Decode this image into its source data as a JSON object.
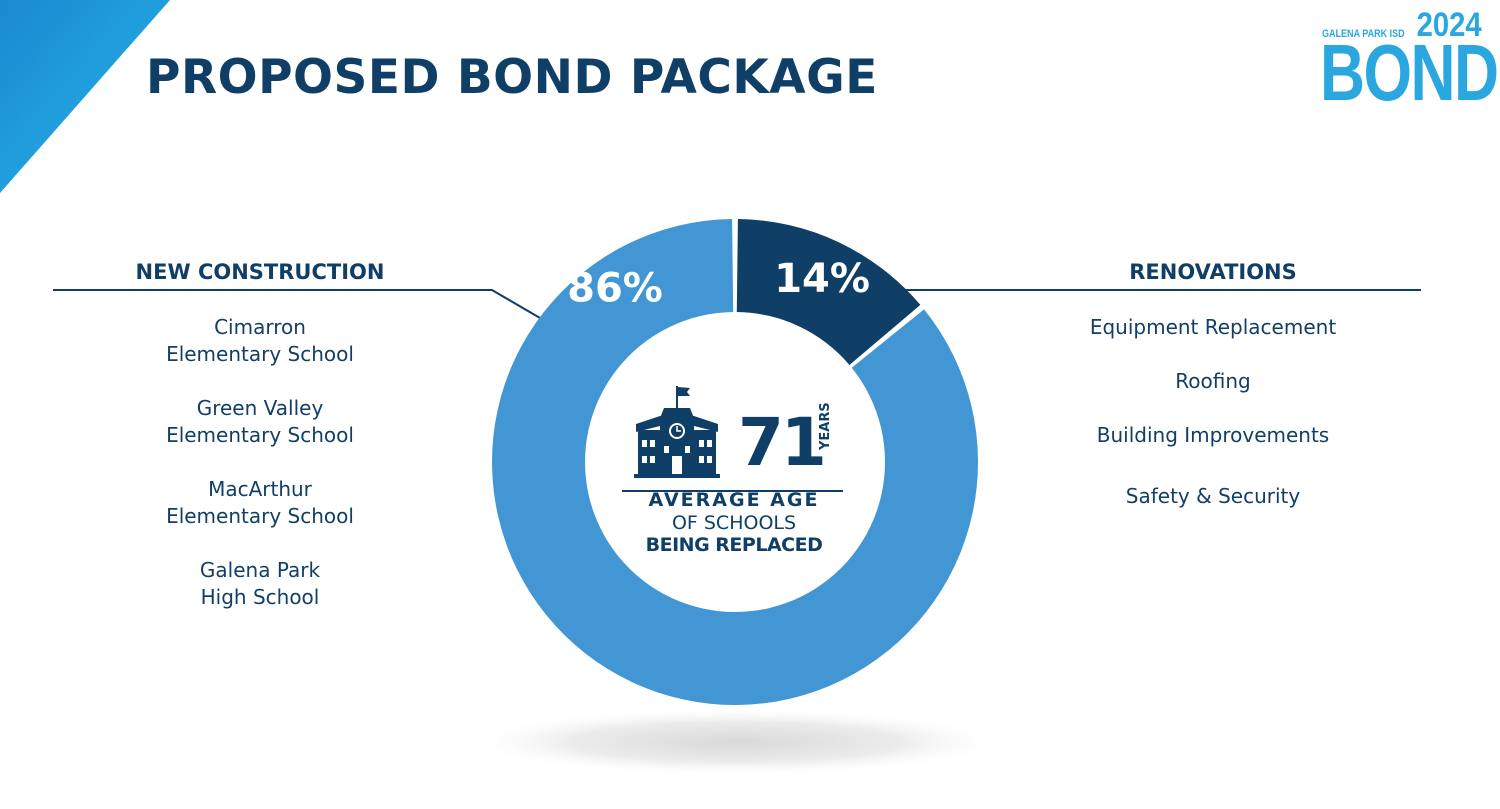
{
  "title": "PROPOSED BOND PACKAGE",
  "logo": {
    "district": "GALENA PARK ISD",
    "year": "2024",
    "word": "BOND"
  },
  "colors": {
    "navy": "#0f3f66",
    "light_blue": "#4396d4",
    "logo_blue": "#2ba7e0"
  },
  "left_panel": {
    "heading": "NEW CONSTRUCTION",
    "items": [
      [
        "Cimarron",
        "Elementary School"
      ],
      [
        "Green Valley",
        "Elementary School"
      ],
      [
        "MacArthur",
        "Elementary School"
      ],
      [
        "Galena Park",
        "High School"
      ]
    ]
  },
  "right_panel": {
    "heading": "RENOVATIONS",
    "items": [
      "Equipment Replacement",
      "Roofing",
      "Building Improvements",
      "Safety & Security"
    ]
  },
  "center": {
    "icon": "school-building-icon",
    "number": "71",
    "unit": "YEARS",
    "caption_line1": "AVERAGE AGE",
    "caption_line2": "OF SCHOOLS",
    "caption_line3": "BEING REPLACED"
  },
  "chart_data": {
    "type": "pie",
    "donut": true,
    "title": "",
    "slices": [
      {
        "name": "NEW CONSTRUCTION",
        "value": 86,
        "label": "86%",
        "color": "#4396d4"
      },
      {
        "name": "RENOVATIONS",
        "value": 14,
        "label": "14%",
        "color": "#0f3f66"
      }
    ]
  }
}
